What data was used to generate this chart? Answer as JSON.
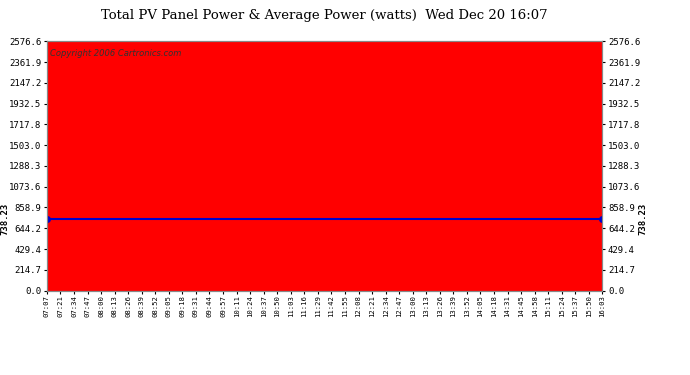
{
  "title": "Total PV Panel Power & Average Power (watts)  Wed Dec 20 16:07",
  "copyright": "Copyright 2006 Cartronics.com",
  "average_power": 738.23,
  "y_max": 2576.6,
  "y_ticks": [
    0.0,
    214.7,
    429.4,
    644.2,
    858.9,
    1073.6,
    1288.3,
    1503.0,
    1717.8,
    1932.5,
    2147.2,
    2361.9,
    2576.6
  ],
  "background_color": "#ffffff",
  "plot_bg_color": "#ffffff",
  "grid_color": "#aaaaaa",
  "fill_color": "#ff0000",
  "line_color": "#0000cc",
  "avg_label_color": "#000080",
  "x_labels": [
    "07:07",
    "07:21",
    "07:34",
    "07:47",
    "08:00",
    "08:13",
    "08:26",
    "08:39",
    "08:52",
    "09:05",
    "09:18",
    "09:31",
    "09:44",
    "09:57",
    "10:11",
    "10:24",
    "10:37",
    "10:50",
    "11:03",
    "11:16",
    "11:29",
    "11:42",
    "11:55",
    "12:08",
    "12:21",
    "12:34",
    "12:47",
    "13:00",
    "13:13",
    "13:26",
    "13:39",
    "13:52",
    "14:05",
    "14:18",
    "14:31",
    "14:45",
    "14:58",
    "15:11",
    "15:24",
    "15:37",
    "15:50",
    "16:03"
  ]
}
